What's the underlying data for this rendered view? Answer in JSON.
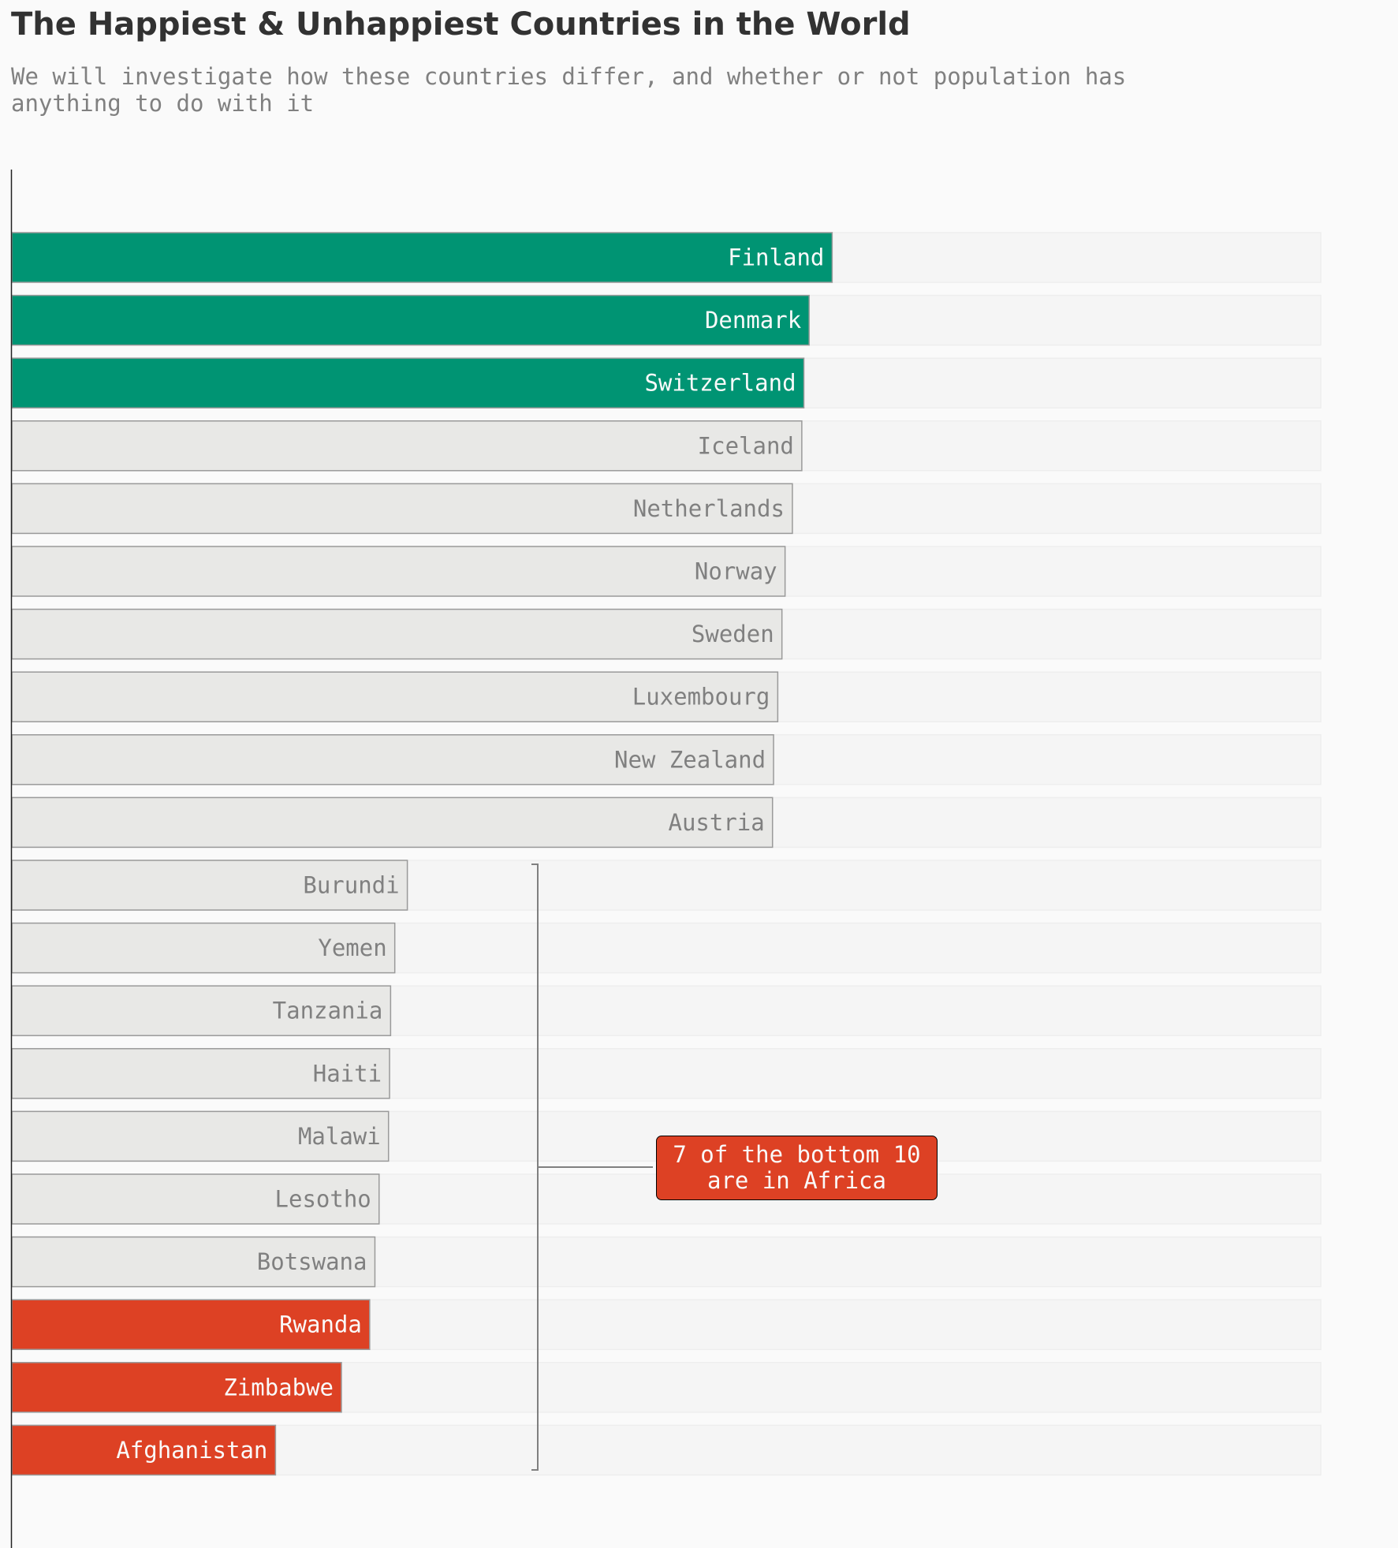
{
  "header": {
    "title": "The Happiest & Unhappiest Countries in the World",
    "subtitle": "We will investigate how these countries differ, and whether or not population has anything to do with it"
  },
  "colors": {
    "background": "#fafafa",
    "top_highlight": "#009473",
    "bottom_highlight": "#dd4124",
    "neutral_bar": "#e8e8e6",
    "track": "#f5f5f5",
    "label_muted": "#808080",
    "label_light": "#fafafa"
  },
  "chart_data": {
    "type": "bar",
    "orientation": "horizontal",
    "categories": [
      "Finland",
      "Denmark",
      "Switzerland",
      "Iceland",
      "Netherlands",
      "Norway",
      "Sweden",
      "Luxembourg",
      "New Zealand",
      "Austria",
      "Burundi",
      "Yemen",
      "Tanzania",
      "Haiti",
      "Malawi",
      "Lesotho",
      "Botswana",
      "Rwanda",
      "Zimbabwe",
      "Afghanistan"
    ],
    "values": [
      7.84,
      7.62,
      7.57,
      7.55,
      7.46,
      7.39,
      7.36,
      7.32,
      7.28,
      7.27,
      3.78,
      3.66,
      3.62,
      3.61,
      3.6,
      3.51,
      3.47,
      3.42,
      3.15,
      2.52
    ],
    "highlight": [
      "top",
      "top",
      "top",
      "none",
      "none",
      "none",
      "none",
      "none",
      "none",
      "none",
      "none",
      "none",
      "none",
      "none",
      "none",
      "none",
      "none",
      "bottom",
      "bottom",
      "bottom"
    ],
    "xlim": [
      0,
      10
    ],
    "grid": false,
    "annotation": {
      "text_line1": "7 of the bottom 10",
      "text_line2": "are in Africa"
    }
  }
}
